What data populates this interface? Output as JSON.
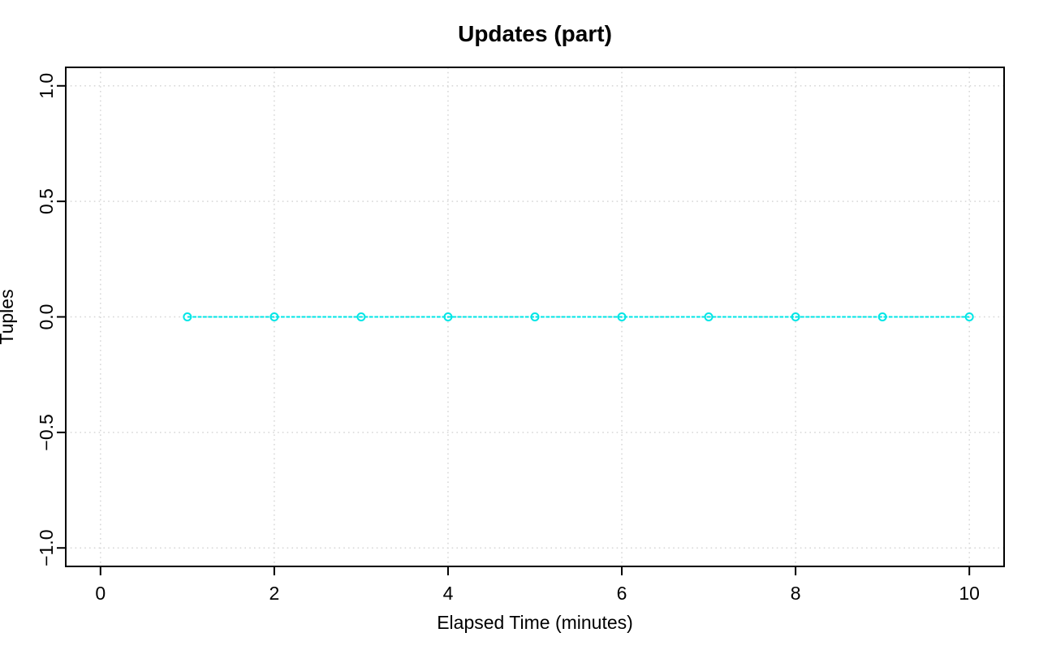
{
  "chart_data": {
    "type": "line",
    "title": "Updates (part)",
    "xlabel": "Elapsed Time (minutes)",
    "ylabel": "Tuples",
    "x": [
      1,
      2,
      3,
      4,
      5,
      6,
      7,
      8,
      9,
      10
    ],
    "y": [
      0,
      0,
      0,
      0,
      0,
      0,
      0,
      0,
      0,
      0
    ],
    "xlim": [
      -0.4,
      10.4
    ],
    "ylim": [
      -1.08,
      1.08
    ],
    "xticks": [
      0,
      2,
      4,
      6,
      8,
      10
    ],
    "xtick_labels": [
      "0",
      "2",
      "4",
      "6",
      "8",
      "10"
    ],
    "yticks": [
      -1.0,
      -0.5,
      0.0,
      0.5,
      1.0
    ],
    "ytick_labels": [
      "−1.0",
      "−0.5",
      "0.0",
      "0.5",
      "1.0"
    ],
    "grid": "dotted",
    "legend_position": "none",
    "marker": "open-circle",
    "line_style": "finely-dashed",
    "colors": {
      "series": "#00e6e6",
      "grid": "#d6d6d6",
      "axis": "#000000",
      "text": "#000000",
      "background": "#ffffff"
    }
  }
}
